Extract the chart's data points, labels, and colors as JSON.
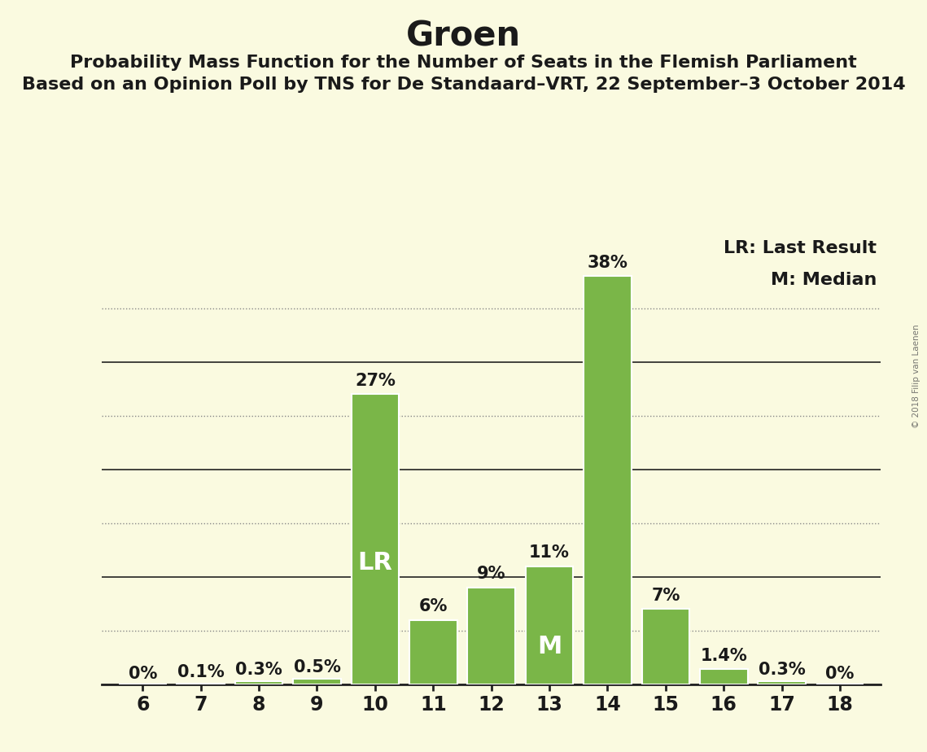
{
  "title": "Groen",
  "subtitle1": "Probability Mass Function for the Number of Seats in the Flemish Parliament",
  "subtitle2": "Based on an Opinion Poll by TNS for De Standaard–VRT, 22 September–3 October 2014",
  "watermark": "© 2018 Filip van Laenen",
  "seats": [
    6,
    7,
    8,
    9,
    10,
    11,
    12,
    13,
    14,
    15,
    16,
    17,
    18
  ],
  "probabilities": [
    0.0,
    0.1,
    0.3,
    0.5,
    27.0,
    6.0,
    9.0,
    11.0,
    38.0,
    7.0,
    1.4,
    0.3,
    0.0
  ],
  "bar_labels": [
    "0%",
    "0.1%",
    "0.3%",
    "0.5%",
    "27%",
    "6%",
    "9%",
    "11%",
    "38%",
    "7%",
    "1.4%",
    "0.3%",
    "0%"
  ],
  "bar_color": "#7ab648",
  "background_color": "#fafae0",
  "solid_grid_color": "#222222",
  "dotted_grid_color": "#888888",
  "text_color": "#1a1a1a",
  "title_fontsize": 30,
  "subtitle_fontsize": 16,
  "label_fontsize": 14,
  "tick_fontsize": 17,
  "ytick_labels_solid": [
    0,
    10,
    20,
    30
  ],
  "ytick_labels_dotted": [
    5,
    15,
    25,
    35
  ],
  "ylim": [
    0,
    42
  ],
  "lr_seat": 10,
  "median_seat": 13,
  "lr_label": "LR",
  "median_label": "M",
  "legend_lr": "LR: Last Result",
  "legend_m": "M: Median",
  "annotation_fontsize": 15,
  "inline_label_color": "#ffffff",
  "inline_label_fontsize": 22
}
